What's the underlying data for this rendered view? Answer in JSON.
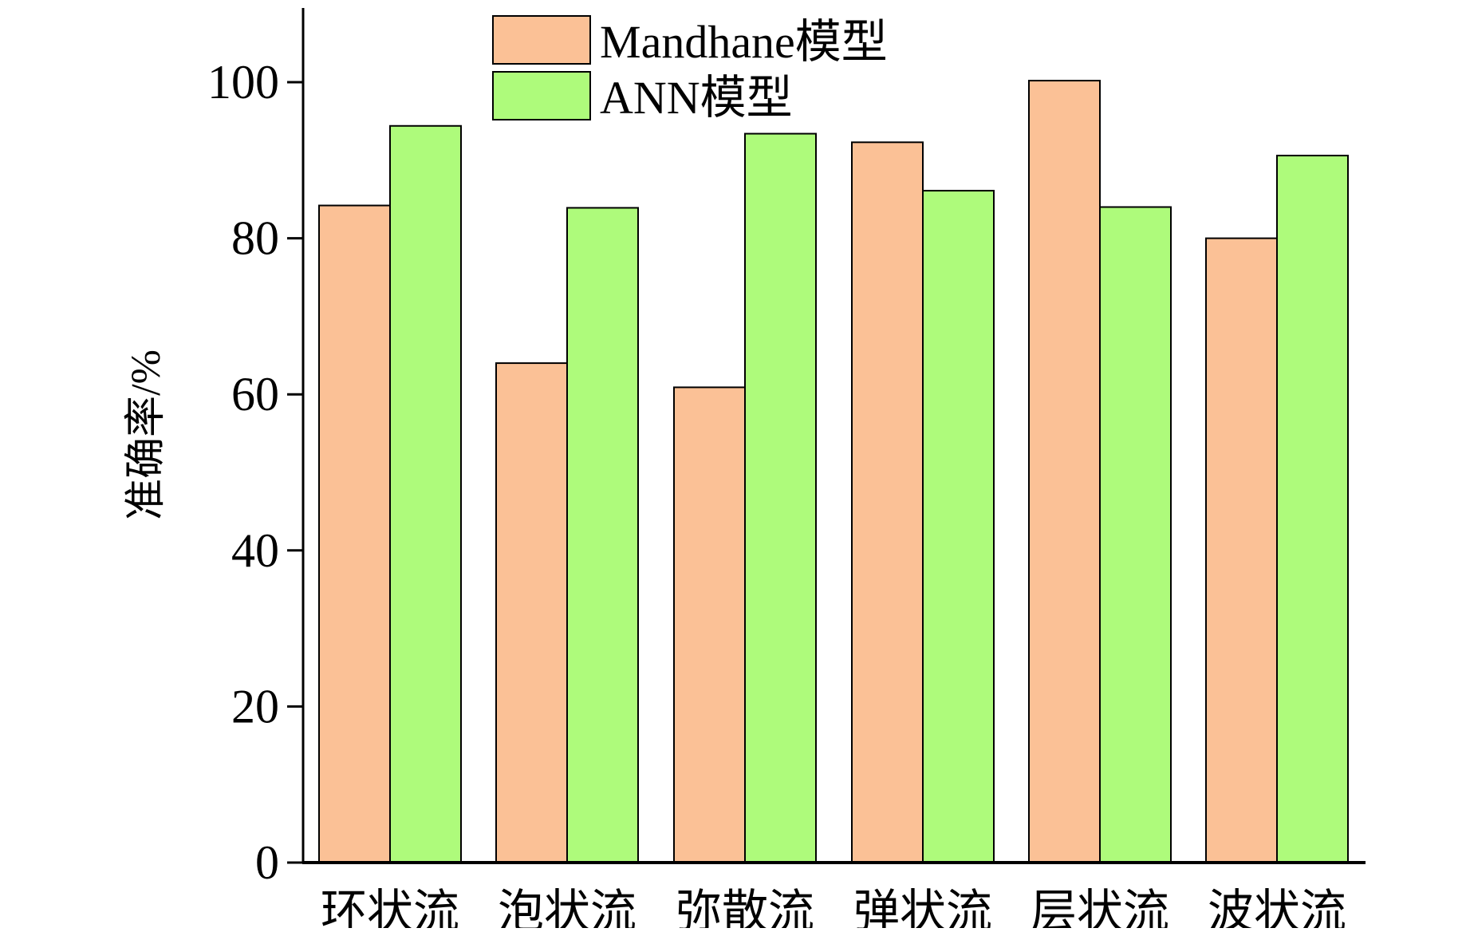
{
  "chart_data": {
    "type": "bar",
    "categories": [
      "环状流",
      "泡状流",
      "弥散流",
      "弹状流",
      "层状流",
      "波状流"
    ],
    "series": [
      {
        "name": "Mandhane模型",
        "color": "#FBC196",
        "values": [
          84.2,
          64.0,
          60.9,
          92.3,
          100.2,
          80.0
        ]
      },
      {
        "name": "ANN模型",
        "color": "#AEFB7B",
        "values": [
          94.4,
          83.9,
          93.4,
          86.1,
          84.0,
          90.6
        ]
      }
    ],
    "xlabel": "",
    "ylabel": "准确率/%",
    "ylim": [
      0,
      110
    ],
    "yticks": [
      0,
      20,
      40,
      60,
      80,
      100
    ],
    "grid": false,
    "legend_position": "top-center"
  }
}
